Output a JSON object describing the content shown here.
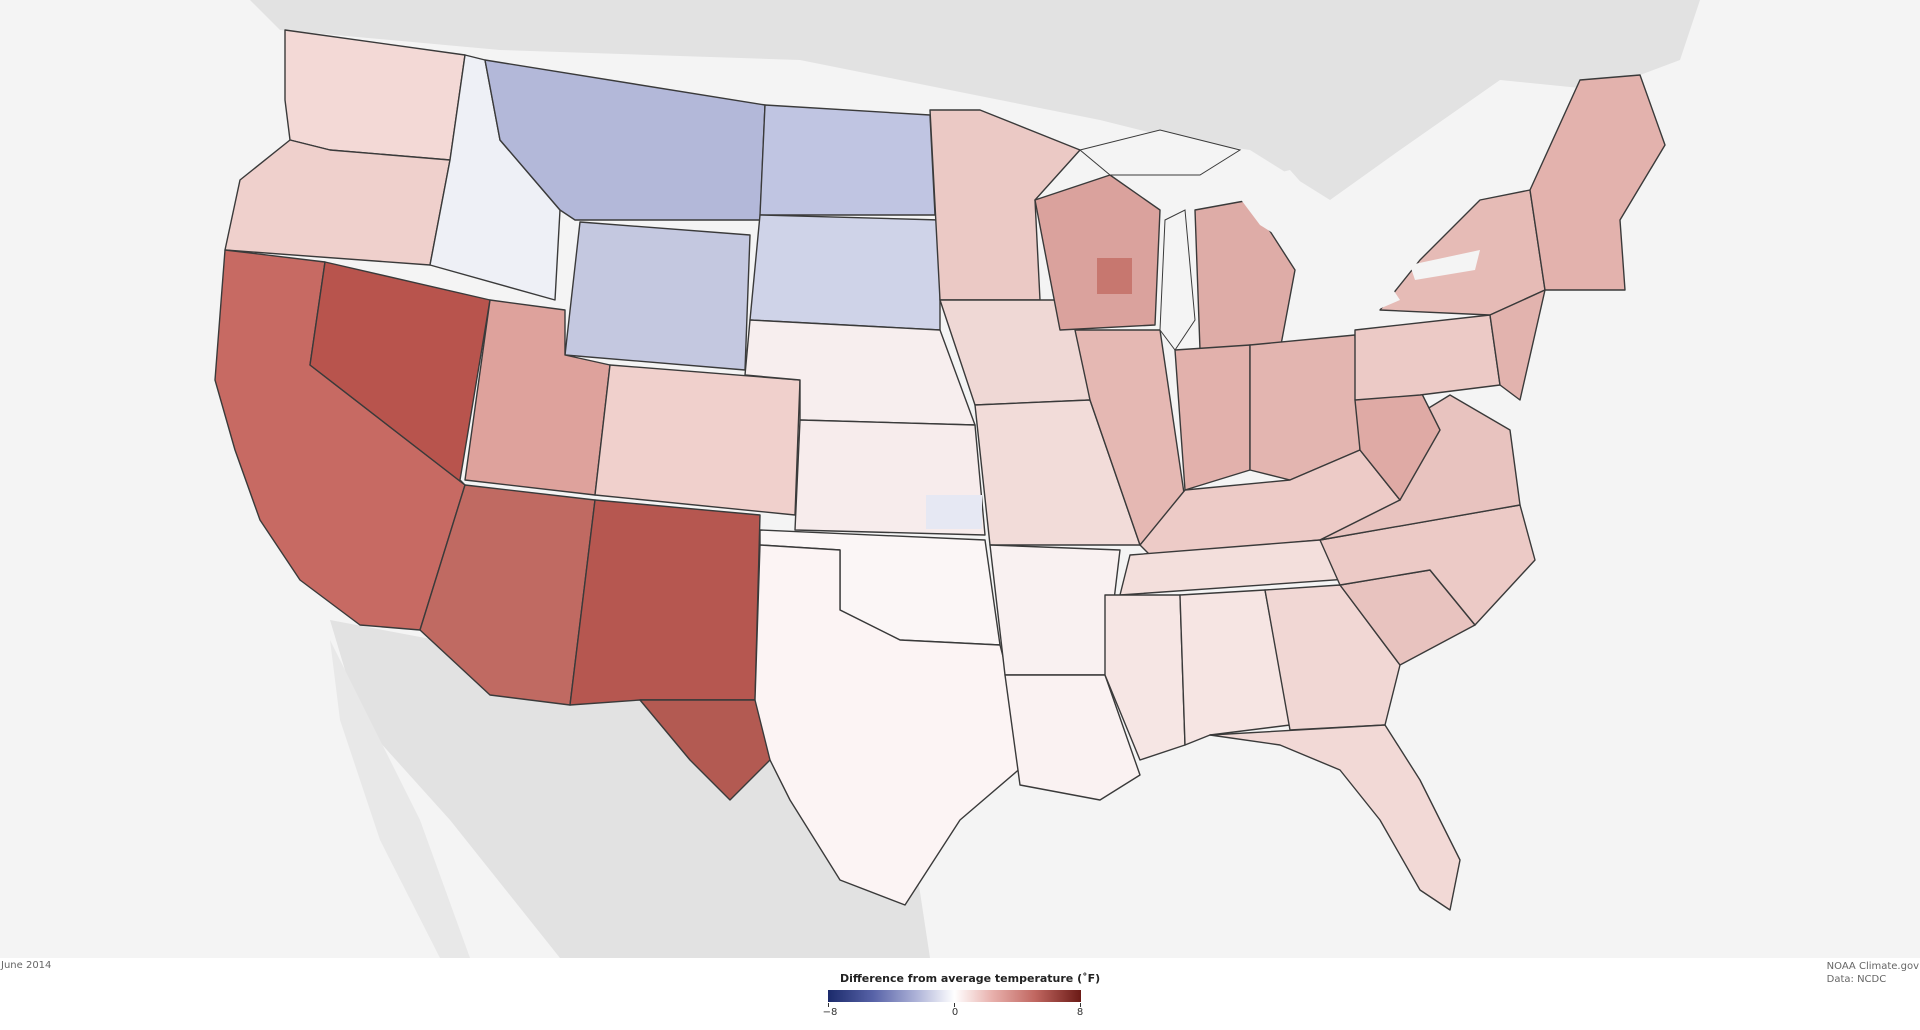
{
  "map": {
    "date": "June 2014",
    "credit_line1": "NOAA Climate.gov",
    "credit_line2": "Data: NCDC"
  },
  "legend": {
    "title": "Difference from average temperature (˚F)",
    "min_label": "−8",
    "mid_label": "0",
    "max_label": "8",
    "min_color": "#1b2a6b",
    "mid_color": "#ffffff",
    "max_color": "#6b1a16"
  },
  "colors": {
    "land_background": "#e3e3e3",
    "water": "#f4f4f4",
    "border": "#3a3a3a"
  }
}
